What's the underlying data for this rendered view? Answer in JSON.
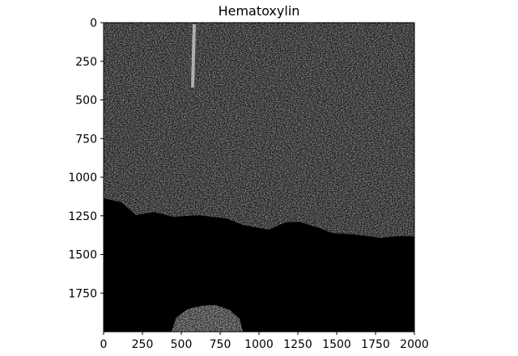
{
  "figure": {
    "title": "Hematoxylin",
    "image_description": "grayscale hematoxylin channel of a tissue micrograph; bright speckled texture in upper area, dark region in lower area, small bright blob near bottom",
    "x_axis": {
      "range": [
        0,
        2000
      ],
      "ticks": [
        "0",
        "250",
        "500",
        "750",
        "1000",
        "1250",
        "1500",
        "1750",
        "2000"
      ],
      "tick_values": [
        0,
        250,
        500,
        750,
        1000,
        1250,
        1500,
        1750,
        2000
      ]
    },
    "y_axis": {
      "range": [
        0,
        2000
      ],
      "inverted": true,
      "ticks": [
        "0",
        "250",
        "500",
        "750",
        "1000",
        "1250",
        "1500",
        "1750"
      ],
      "tick_values": [
        0,
        250,
        500,
        750,
        1000,
        1250,
        1500,
        1750
      ]
    },
    "colors": {
      "background": "#ffffff",
      "image_dark": "#000000",
      "texture_light": "#e8e8e8",
      "texture_mid": "#8a8a8a",
      "axes": "#000000"
    }
  }
}
